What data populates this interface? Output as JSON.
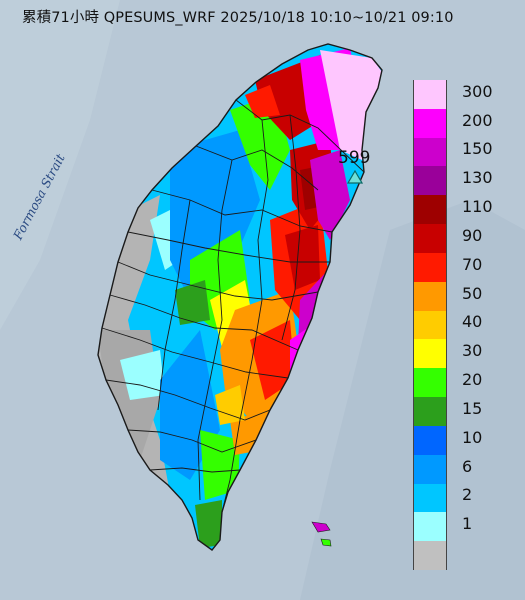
{
  "title": "累積71小時 QPESUMS_WRF 2025/10/18 10:10~10/21 09:10",
  "strait_label": "Formosa Strait",
  "max_station": {
    "value": "599",
    "marker": "triangle-marker-icon",
    "color": "#6fe0d8"
  },
  "legend": {
    "labels": [
      "300",
      "200",
      "150",
      "130",
      "110",
      "90",
      "70",
      "50",
      "40",
      "30",
      "20",
      "15",
      "10",
      "6",
      "2",
      "1"
    ],
    "colors": [
      "#fec6fe",
      "#fd00fd",
      "#cc00cc",
      "#9a009a",
      "#9e0000",
      "#c80000",
      "#ff1a00",
      "#ff9900",
      "#ffcc00",
      "#ffff00",
      "#34ff00",
      "#2c9f1c",
      "#0066ff",
      "#0099ff",
      "#00c6ff",
      "#9bffff",
      "#c0c0c0"
    ]
  },
  "colors": {
    "sea": "#b8c8d6",
    "land_relief": "#a9b4bd",
    "boundaries": "#1a1a1a"
  }
}
